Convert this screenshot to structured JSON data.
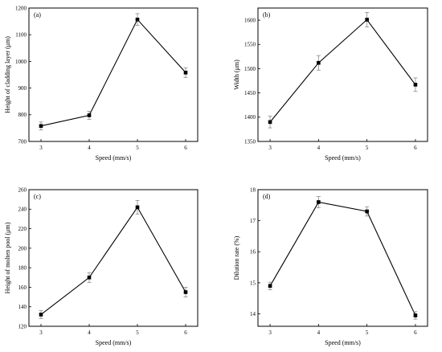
{
  "chart_data": [
    {
      "type": "line",
      "panel_label": "(a)",
      "xlabel": "Speed (mm/s)",
      "ylabel": "Height of cladding layer (μm)",
      "x": [
        3,
        4,
        5,
        6
      ],
      "xticks": [
        "3",
        "4",
        "5",
        "6"
      ],
      "xlim": [
        2.75,
        6.25
      ],
      "ylim": [
        700,
        1200
      ],
      "yticks": [
        "700",
        "800",
        "900",
        "1000",
        "1100",
        "1200"
      ],
      "yticks_values": [
        700,
        800,
        900,
        1000,
        1100,
        1200
      ],
      "series": [
        {
          "values": [
            758,
            798,
            1157,
            958
          ],
          "errors": [
            15,
            15,
            22,
            18
          ]
        }
      ]
    },
    {
      "type": "line",
      "panel_label": "(b)",
      "xlabel": "Speed (mm/s)",
      "ylabel": "Width (μm)",
      "x": [
        3,
        4,
        5,
        6
      ],
      "xticks": [
        "3",
        "4",
        "5",
        "6"
      ],
      "xlim": [
        2.75,
        6.25
      ],
      "ylim": [
        1350,
        1625
      ],
      "yticks": [
        "1350",
        "1400",
        "1450",
        "1500",
        "1550",
        "1600"
      ],
      "yticks_values": [
        1350,
        1400,
        1450,
        1500,
        1550,
        1600
      ],
      "series": [
        {
          "values": [
            1390,
            1512,
            1601,
            1467
          ],
          "errors": [
            12,
            15,
            15,
            14
          ]
        }
      ]
    },
    {
      "type": "line",
      "panel_label": "(c)",
      "xlabel": "Speed (mm/s)",
      "ylabel": "Height of molten pool (μm)",
      "x": [
        3,
        4,
        5,
        6
      ],
      "xticks": [
        "3",
        "4",
        "5",
        "6"
      ],
      "xlim": [
        2.75,
        6.25
      ],
      "ylim": [
        120,
        260
      ],
      "yticks": [
        "120",
        "140",
        "160",
        "180",
        "200",
        "220",
        "240",
        "260"
      ],
      "yticks_values": [
        120,
        140,
        160,
        180,
        200,
        220,
        240,
        260
      ],
      "series": [
        {
          "values": [
            132,
            170,
            242,
            155
          ],
          "errors": [
            4,
            5,
            7,
            5
          ]
        }
      ]
    },
    {
      "type": "line",
      "panel_label": "(d)",
      "xlabel": "Speed (mm/s)",
      "ylabel": "Dilution rate (%)",
      "x": [
        3,
        4,
        5,
        6
      ],
      "xticks": [
        "3",
        "4",
        "5",
        "6"
      ],
      "xlim": [
        2.75,
        6.25
      ],
      "ylim": [
        13.6,
        18
      ],
      "yticks": [
        "14",
        "15",
        "16",
        "17",
        "18"
      ],
      "yticks_values": [
        14,
        15,
        16,
        17,
        18
      ],
      "series": [
        {
          "values": [
            14.9,
            17.6,
            17.3,
            13.95
          ],
          "errors": [
            0.12,
            0.18,
            0.15,
            0.12
          ]
        }
      ]
    }
  ]
}
